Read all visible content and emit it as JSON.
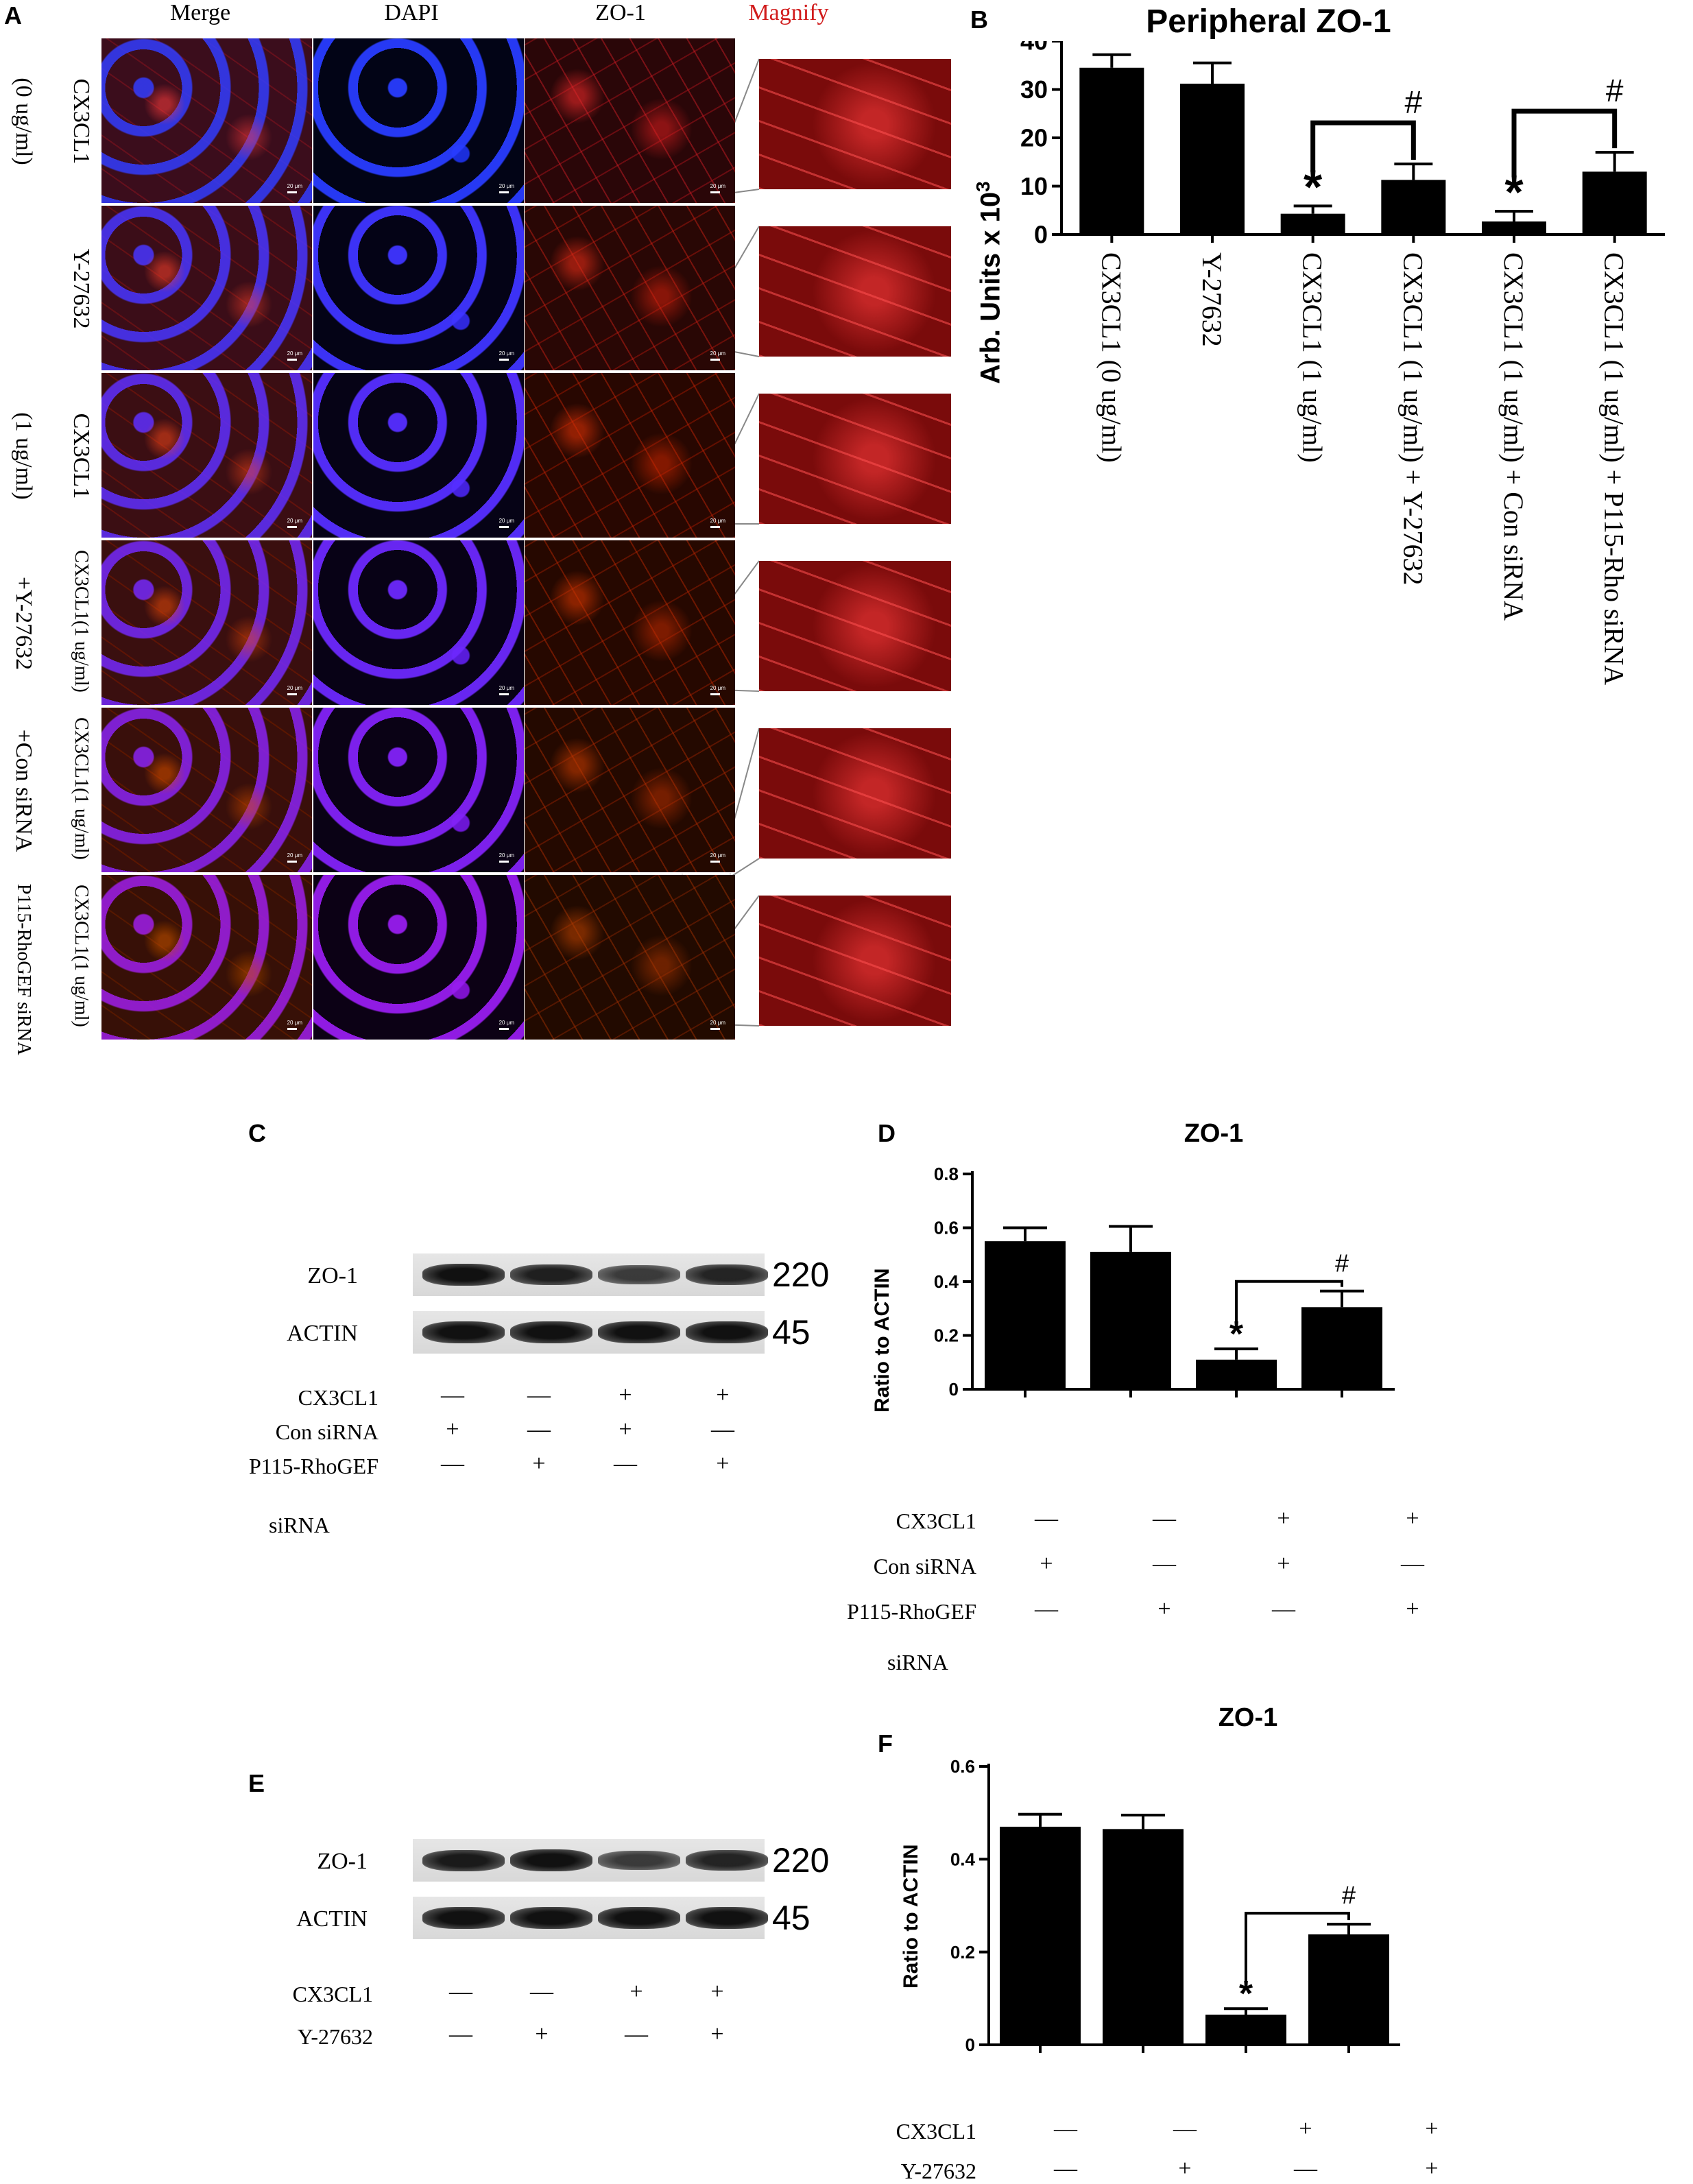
{
  "panel_a": {
    "letter": "A",
    "columns": [
      "Merge",
      "DAPI",
      "ZO-1",
      "Magnify"
    ],
    "rows": [
      {
        "line1": "CX3CL1",
        "line2": "(0 ug/ml)"
      },
      {
        "line1": "Y-27632",
        "line2": ""
      },
      {
        "line1": "CX3CL1",
        "line2": "(1 ug/ml)"
      },
      {
        "line1": "CX3CL1(1 ug/ml)",
        "line2": "+Y-27632"
      },
      {
        "line1": "CX3CL1(1 ug/ml)",
        "line2": "+Con siRNA"
      },
      {
        "line1": "CX3CL1(1 ug/ml)",
        "line2": "P115-RhoGEF siRNA"
      }
    ],
    "scale_text": "20 μm",
    "magnify_color": "#d11b1b"
  },
  "panel_b": {
    "letter": "B",
    "title": "Peripheral ZO-1",
    "ylabel_main": "Arb. Units x 10",
    "ylabel_sup": "3",
    "sig_star": "*",
    "sig_hash": "#",
    "chart_data": {
      "type": "bar",
      "title": "Peripheral ZO-1",
      "ylabel": "Arb. Units x 10^3",
      "ylim": [
        0,
        40
      ],
      "yticks": [
        0,
        10,
        20,
        30,
        40
      ],
      "categories": [
        "CX3CL1 (0 ug/ml)",
        "Y-27632",
        "CX3CL1 (1 ug/ml)",
        "CX3CL1 (1 ug/ml) + Y-27632",
        "CX3CL1 (1 ug/ml) + Con siRNA",
        "CX3CL1 (1 ug/ml) + P115-Rho siRNA"
      ],
      "values": [
        34.5,
        31.2,
        4.3,
        11.3,
        2.7,
        13.0
      ],
      "errors": [
        2.7,
        4.3,
        1.6,
        3.3,
        2.1,
        4.0
      ],
      "stars": [
        2,
        4
      ],
      "hash_brackets": [
        [
          2,
          3
        ],
        [
          4,
          5
        ]
      ]
    }
  },
  "panel_c": {
    "letter": "C",
    "rows": [
      "ZO-1",
      "ACTIN"
    ],
    "mw": [
      "220",
      "45"
    ],
    "band_intensity_zo1": [
      1.0,
      0.85,
      0.55,
      0.8
    ],
    "band_intensity_actin": [
      1.0,
      1.0,
      1.0,
      1.0
    ],
    "conditions": [
      {
        "label": "CX3CL1",
        "signs": [
          "—",
          "—",
          "+",
          "+"
        ]
      },
      {
        "label": "Con siRNA",
        "signs": [
          "+",
          "—",
          "+",
          "—"
        ]
      },
      {
        "label": "P115-RhoGEF",
        "signs": [
          "—",
          "+",
          "—",
          "+"
        ]
      }
    ],
    "extra_label": "siRNA"
  },
  "panel_d": {
    "letter": "D",
    "title": "ZO-1",
    "ylabel": "Ratio to ACTIN",
    "sig_star": "*",
    "sig_hash": "#",
    "chart_data": {
      "type": "bar",
      "title": "ZO-1",
      "ylabel": "Ratio to ACTIN",
      "ylim": [
        0,
        0.8
      ],
      "yticks": [
        0.0,
        0.2,
        0.4,
        0.6,
        0.8
      ],
      "values": [
        0.55,
        0.51,
        0.11,
        0.305
      ],
      "errors": [
        0.05,
        0.095,
        0.04,
        0.06
      ],
      "stars": [
        2
      ],
      "hash_brackets": [
        [
          2,
          3
        ]
      ]
    },
    "conditions": [
      {
        "label": "CX3CL1",
        "signs": [
          "—",
          "—",
          "+",
          "+"
        ]
      },
      {
        "label": "Con siRNA",
        "signs": [
          "+",
          "—",
          "+",
          "—"
        ]
      },
      {
        "label": "P115-RhoGEF",
        "signs": [
          "—",
          "+",
          "—",
          "+"
        ]
      }
    ],
    "extra_label": "siRNA"
  },
  "panel_e": {
    "letter": "E",
    "rows": [
      "ZO-1",
      "ACTIN"
    ],
    "mw": [
      "220",
      "45"
    ],
    "band_intensity_zo1": [
      0.9,
      1.0,
      0.55,
      0.8
    ],
    "band_intensity_actin": [
      1.0,
      1.0,
      1.0,
      1.0
    ],
    "conditions": [
      {
        "label": "CX3CL1",
        "signs": [
          "—",
          "—",
          "+",
          "+"
        ]
      },
      {
        "label": "Y-27632",
        "signs": [
          "—",
          "+",
          "—",
          "+"
        ]
      }
    ]
  },
  "panel_f": {
    "letter": "F",
    "title": "ZO-1",
    "ylabel": "Ratio to ACTIN",
    "sig_star": "*",
    "sig_hash": "#",
    "chart_data": {
      "type": "bar",
      "title": "ZO-1",
      "ylabel": "Ratio to ACTIN",
      "ylim": [
        0,
        0.6
      ],
      "yticks": [
        0.0,
        0.2,
        0.4,
        0.6
      ],
      "values": [
        0.47,
        0.465,
        0.065,
        0.238
      ],
      "errors": [
        0.027,
        0.03,
        0.013,
        0.022
      ],
      "stars": [
        2
      ],
      "hash_brackets": [
        [
          2,
          3
        ]
      ]
    },
    "conditions": [
      {
        "label": "CX3CL1",
        "signs": [
          "—",
          "—",
          "+",
          "+"
        ]
      },
      {
        "label": "Y-27632",
        "signs": [
          "—",
          "+",
          "—",
          "+"
        ]
      }
    ]
  }
}
